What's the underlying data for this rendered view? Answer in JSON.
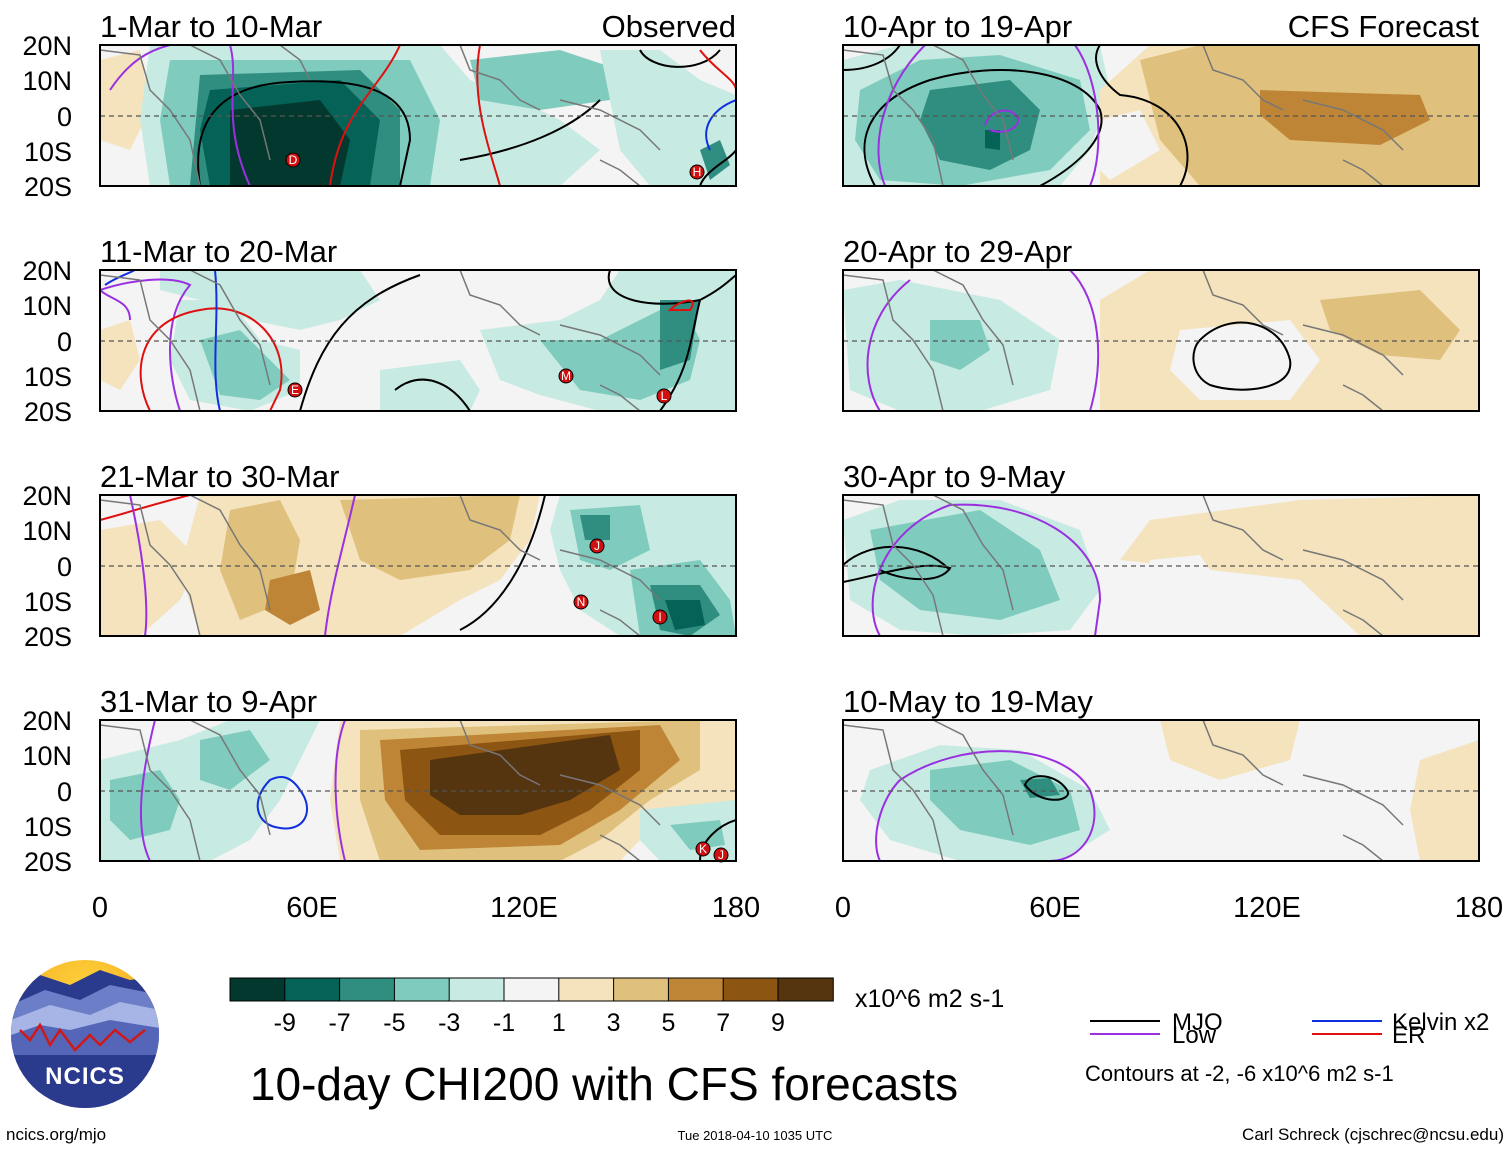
{
  "main_title": "10-day CHI200 with CFS forecasts",
  "observed_label": "Observed",
  "forecast_label": "CFS Forecast",
  "units": "x10^6 m2 s-1",
  "lat_labels": [
    "20N",
    "10N",
    "0",
    "10S",
    "20S"
  ],
  "lon_labels": [
    "0",
    "60E",
    "120E",
    "180"
  ],
  "panels": [
    {
      "title": "1-Mar to 10-Mar",
      "kind": "observed",
      "anomaly": "strong negative over Indian Ocean 40E-100E",
      "storms": [
        {
          "letter": "D",
          "lon": 53,
          "lat": -13
        },
        {
          "letter": "H",
          "lon": 163,
          "lat": -16
        }
      ]
    },
    {
      "title": "11-Mar to 20-Mar",
      "kind": "observed",
      "anomaly": "weak negative over Maritime Continent and West Pacific",
      "storms": [
        {
          "letter": "E",
          "lon": 55,
          "lat": -14
        },
        {
          "letter": "M",
          "lon": 128,
          "lat": -10
        },
        {
          "letter": "L",
          "lon": 158,
          "lat": -16
        }
      ]
    },
    {
      "title": "21-Mar to 30-Mar",
      "kind": "observed",
      "anomaly": "positive over Indian Ocean, negative over West Pacific",
      "storms": [
        {
          "letter": "J",
          "lon": 136,
          "lat": 5
        },
        {
          "letter": "N",
          "lon": 132,
          "lat": -10
        },
        {
          "letter": "I",
          "lon": 155,
          "lat": -14
        }
      ]
    },
    {
      "title": "31-Mar to 9-Apr",
      "kind": "observed",
      "anomaly": "strong positive over Maritime Continent",
      "storms": [
        {
          "letter": "K",
          "lon": 164,
          "lat": -17
        },
        {
          "letter": "J",
          "lon": 170,
          "lat": -18
        }
      ]
    },
    {
      "title": "10-Apr to 19-Apr",
      "kind": "forecast",
      "anomaly": "negative over Africa and Indian Ocean",
      "storms": []
    },
    {
      "title": "20-Apr to 29-Apr",
      "kind": "forecast",
      "anomaly": "weak negative Africa, weak positive Pacific",
      "storms": []
    },
    {
      "title": "30-Apr to 9-May",
      "kind": "forecast",
      "anomaly": "negative over Africa and western Indian Ocean",
      "storms": []
    },
    {
      "title": "10-May to 19-May",
      "kind": "forecast",
      "anomaly": "negative over western Indian Ocean",
      "storms": []
    }
  ],
  "colorbar": {
    "colors": [
      "#02382e",
      "#056257",
      "#2f8e80",
      "#7fcbbe",
      "#c7ebe2",
      "#f4f4f4",
      "#f4e3bd",
      "#dfc17d",
      "#bf8536",
      "#8c5512",
      "#553410"
    ],
    "labels": [
      "-9",
      "-7",
      "-5",
      "-3",
      "-1",
      "1",
      "3",
      "5",
      "7",
      "9"
    ]
  },
  "legend": {
    "items": [
      {
        "label": "MJO",
        "color": "#000000"
      },
      {
        "label": "Kelvin x2",
        "color": "#1030e0"
      },
      {
        "label": "Low",
        "color": "#9b30e0"
      },
      {
        "label": "ER",
        "color": "#e01010"
      }
    ],
    "contour_note": "Contours at -2, -6 x10^6 m2 s-1"
  },
  "logo_text": "NCICS",
  "website": "ncics.org/mjo",
  "timestamp": "Tue 2018-04-10 1035 UTC",
  "author": "Carl Schreck (cjschrec@ncsu.edu)"
}
